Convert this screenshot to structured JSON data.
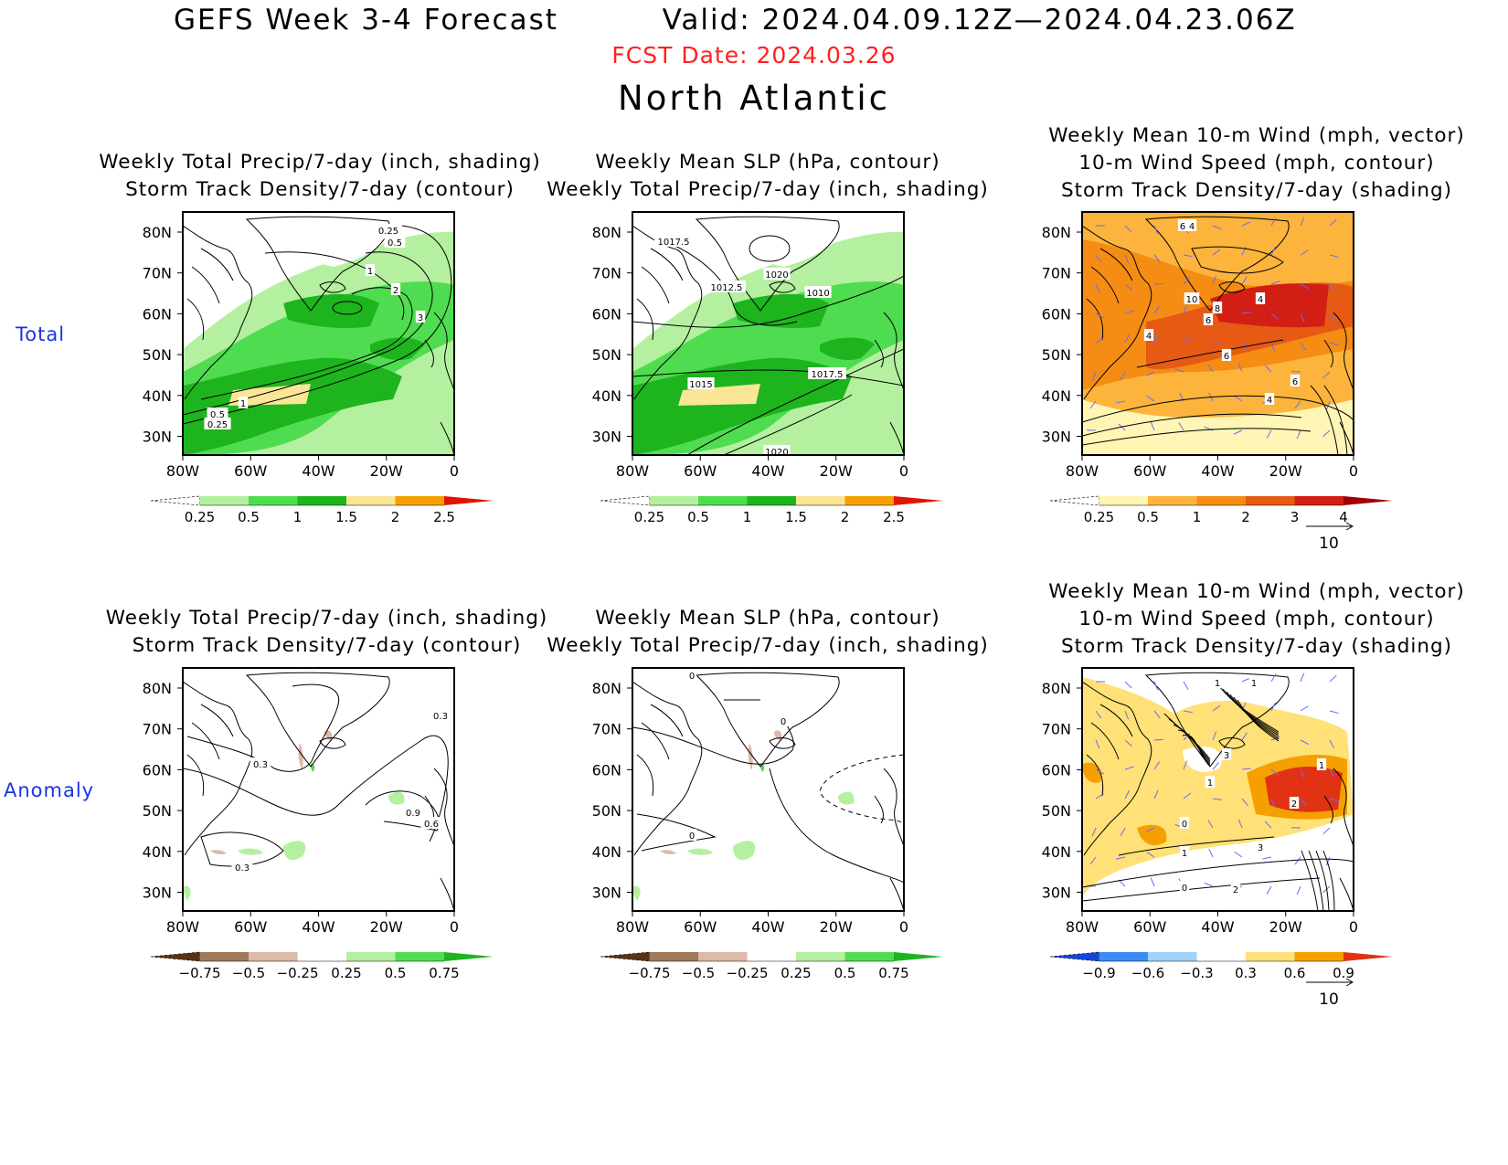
{
  "header": {
    "title": "GEFS Week 3-4 Forecast",
    "valid": "Valid: 2024.04.09.12Z—2024.04.23.06Z",
    "fcst_date": "FCST Date: 2024.03.26",
    "region": "North Atlantic"
  },
  "rows": {
    "total": "Total",
    "anomaly": "Anomaly"
  },
  "axes": {
    "lat_labels": [
      "80N",
      "70N",
      "60N",
      "50N",
      "40N",
      "30N"
    ],
    "lon_labels": [
      "80W",
      "60W",
      "40W",
      "20W",
      "0"
    ]
  },
  "colors": {
    "total_precip": [
      "#ffffff",
      "#b4f0a0",
      "#50dc50",
      "#1eb41e",
      "#fae696",
      "#f5a000",
      "#e11400"
    ],
    "total_storm": [
      "#ffffff",
      "#fff5b4",
      "#fcb43c",
      "#f58c14",
      "#e65a14",
      "#d21e14",
      "#a00000"
    ],
    "anom_precip": [
      "#5a3214",
      "#a0785a",
      "#ddb9a7",
      "#ffffff",
      "#b4f0a0",
      "#50dc50",
      "#1eb41e"
    ],
    "anom_storm": [
      "#1446dc",
      "#3c8cf5",
      "#a0d2fa",
      "#ffffff",
      "#ffe178",
      "#f5a000",
      "#e13214"
    ]
  },
  "legends": {
    "precip_total": [
      "0.25",
      "0.5",
      "1",
      "1.5",
      "2",
      "2.5"
    ],
    "storm_total": [
      "0.25",
      "0.5",
      "1",
      "2",
      "3",
      "4"
    ],
    "precip_anom": [
      "−0.75",
      "−0.5",
      "−0.25",
      "0.25",
      "0.5",
      "0.75"
    ],
    "storm_anom": [
      "−0.9",
      "−0.6",
      "−0.3",
      "0.3",
      "0.6",
      "0.9"
    ],
    "wind_ref": "10"
  },
  "panels": [
    {
      "id": "total-precip-storm",
      "titles": [
        "Weekly Total Precip/7-day (inch, shading)",
        "Storm Track Density/7-day (contour)"
      ],
      "contour_labels": [
        "0.25",
        "0.5",
        "1",
        "2",
        "3",
        "1",
        "0.5",
        "0.25"
      ]
    },
    {
      "id": "total-slp-precip",
      "titles": [
        "Weekly Mean SLP (hPa, contour)",
        "Weekly Total Precip/7-day (inch, shading)"
      ],
      "contour_labels": [
        "1017.5",
        "1020",
        "1012.5",
        "1010",
        "1015",
        "1017.5",
        "1020"
      ]
    },
    {
      "id": "total-wind-storm",
      "titles": [
        "Weekly Mean 10-m Wind (mph, vector)",
        "10-m Wind Speed (mph, contour)",
        "Storm Track Density/7-day (shading)"
      ],
      "contour_labels": [
        "6",
        "4",
        "10",
        "8",
        "6",
        "4",
        "4",
        "6",
        "6",
        "4"
      ]
    },
    {
      "id": "anom-precip-storm",
      "titles": [
        "Weekly Total Precip/7-day (inch, shading)",
        "Storm Track Density/7-day (contour)"
      ],
      "contour_labels": [
        "0.3",
        "0.3",
        "0.9",
        "0.6",
        "0.3"
      ]
    },
    {
      "id": "anom-slp-precip",
      "titles": [
        "Weekly Mean SLP (hPa, contour)",
        "Weekly Total Precip/7-day (inch, shading)"
      ],
      "contour_labels": [
        "0",
        "0",
        "0"
      ]
    },
    {
      "id": "anom-wind-storm",
      "titles": [
        "Weekly Mean 10-m Wind (mph, vector)",
        "10-m Wind Speed (mph, contour)",
        "Storm Track Density/7-day (shading)"
      ],
      "contour_labels": [
        "1",
        "1",
        "3",
        "1",
        "0",
        "1",
        "2",
        "0",
        "1",
        "3",
        "2"
      ]
    }
  ]
}
